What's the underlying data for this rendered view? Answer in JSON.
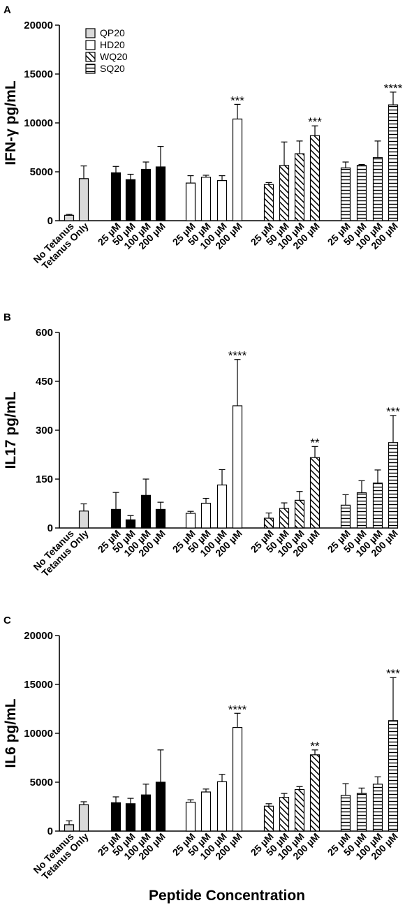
{
  "x_title": "Peptide Concentration",
  "colors": {
    "ink": "#000000",
    "gray": "#d9d9d9",
    "white": "#ffffff"
  },
  "legend": [
    {
      "label": "QP20",
      "pattern": "gray"
    },
    {
      "label": "HD20",
      "pattern": "white"
    },
    {
      "label": "WQ20",
      "pattern": "diag"
    },
    {
      "label": "SQ20",
      "pattern": "hlines"
    }
  ],
  "chart_data": [
    {
      "type": "bar",
      "panel": "A",
      "ylabel": "IFN-γ pg/mL",
      "ylim": [
        0,
        20000
      ],
      "yticks": [
        "0",
        "5000",
        "10000",
        "15000",
        "20000"
      ],
      "categories": [
        "No Tetanus",
        "Tetanus Only",
        "25 µM",
        "50 µM",
        "100 µM",
        "200 µM",
        "25 µM",
        "50 µM",
        "100 µM",
        "200 µM",
        "25 µM",
        "50 µM",
        "100 µM",
        "200 µM",
        "25 µM",
        "50 µM",
        "100 µM",
        "200 µM"
      ],
      "values": [
        550,
        4300,
        4900,
        4200,
        5250,
        5500,
        3850,
        4450,
        4100,
        10400,
        3700,
        5650,
        6850,
        8700,
        5400,
        5650,
        6450,
        11850
      ],
      "errors": [
        100,
        1300,
        650,
        550,
        750,
        2100,
        750,
        200,
        500,
        1500,
        200,
        2400,
        1300,
        1000,
        600,
        100,
        1700,
        1300
      ],
      "patterns": [
        "gray",
        "gray",
        "black",
        "black",
        "black",
        "black",
        "white",
        "white",
        "white",
        "white",
        "diag",
        "diag",
        "diag",
        "diag",
        "hlines",
        "hlines",
        "hlines",
        "hlines"
      ],
      "significance": [
        "",
        "",
        "",
        "",
        "",
        "",
        "",
        "",
        "",
        "***",
        "",
        "",
        "",
        "***",
        "",
        "",
        "",
        "****"
      ]
    },
    {
      "type": "bar",
      "panel": "B",
      "ylabel": "IL17 pg/mL",
      "ylim": [
        0,
        600
      ],
      "yticks": [
        "0",
        "150",
        "300",
        "450",
        "600"
      ],
      "categories": [
        "No Tetanus",
        "Tetanus Only",
        "25 µM",
        "50 µM",
        "100 µM",
        "200 µM",
        "25 µM",
        "50 µM",
        "100 µM",
        "200 µM",
        "25 µM",
        "50 µM",
        "100 µM",
        "200 µM",
        "25 µM",
        "50 µM",
        "100 µM",
        "200 µM"
      ],
      "values": [
        0,
        52,
        57,
        25,
        100,
        57,
        45,
        76,
        132,
        375,
        30,
        60,
        85,
        216,
        70,
        108,
        138,
        262
      ],
      "errors": [
        0,
        22,
        52,
        13,
        50,
        22,
        6,
        15,
        47,
        142,
        16,
        17,
        27,
        34,
        32,
        37,
        40,
        83
      ],
      "patterns": [
        "gray",
        "gray",
        "black",
        "black",
        "black",
        "black",
        "white",
        "white",
        "white",
        "white",
        "diag",
        "diag",
        "diag",
        "diag",
        "hlines",
        "hlines",
        "hlines",
        "hlines"
      ],
      "significance": [
        "",
        "",
        "",
        "",
        "",
        "",
        "",
        "",
        "",
        "****",
        "",
        "",
        "",
        "**",
        "",
        "",
        "",
        "***"
      ]
    },
    {
      "type": "bar",
      "panel": "C",
      "ylabel": "IL6 pg/mL",
      "ylim": [
        0,
        20000
      ],
      "yticks": [
        "0",
        "5000",
        "10000",
        "15000",
        "20000"
      ],
      "categories": [
        "No Tetanus",
        "Tetanus Only",
        "25 µM",
        "50 µM",
        "100 µM",
        "200 µM",
        "25 µM",
        "50 µM",
        "100 µM",
        "200 µM",
        "25 µM",
        "50 µM",
        "100 µM",
        "200 µM",
        "25 µM",
        "50 µM",
        "100 µM",
        "200 µM"
      ],
      "values": [
        650,
        2700,
        2900,
        2800,
        3700,
        5000,
        2950,
        4000,
        5050,
        10600,
        2550,
        3450,
        4250,
        7800,
        3650,
        3850,
        4800,
        11300
      ],
      "errors": [
        400,
        300,
        600,
        550,
        1100,
        3300,
        250,
        300,
        750,
        1450,
        250,
        400,
        300,
        500,
        1200,
        550,
        750,
        4400
      ],
      "patterns": [
        "gray",
        "gray",
        "black",
        "black",
        "black",
        "black",
        "white",
        "white",
        "white",
        "white",
        "diag",
        "diag",
        "diag",
        "diag",
        "hlines",
        "hlines",
        "hlines",
        "hlines"
      ],
      "significance": [
        "",
        "",
        "",
        "",
        "",
        "",
        "",
        "",
        "",
        "****",
        "",
        "",
        "",
        "**",
        "",
        "",
        "",
        "***"
      ]
    }
  ]
}
